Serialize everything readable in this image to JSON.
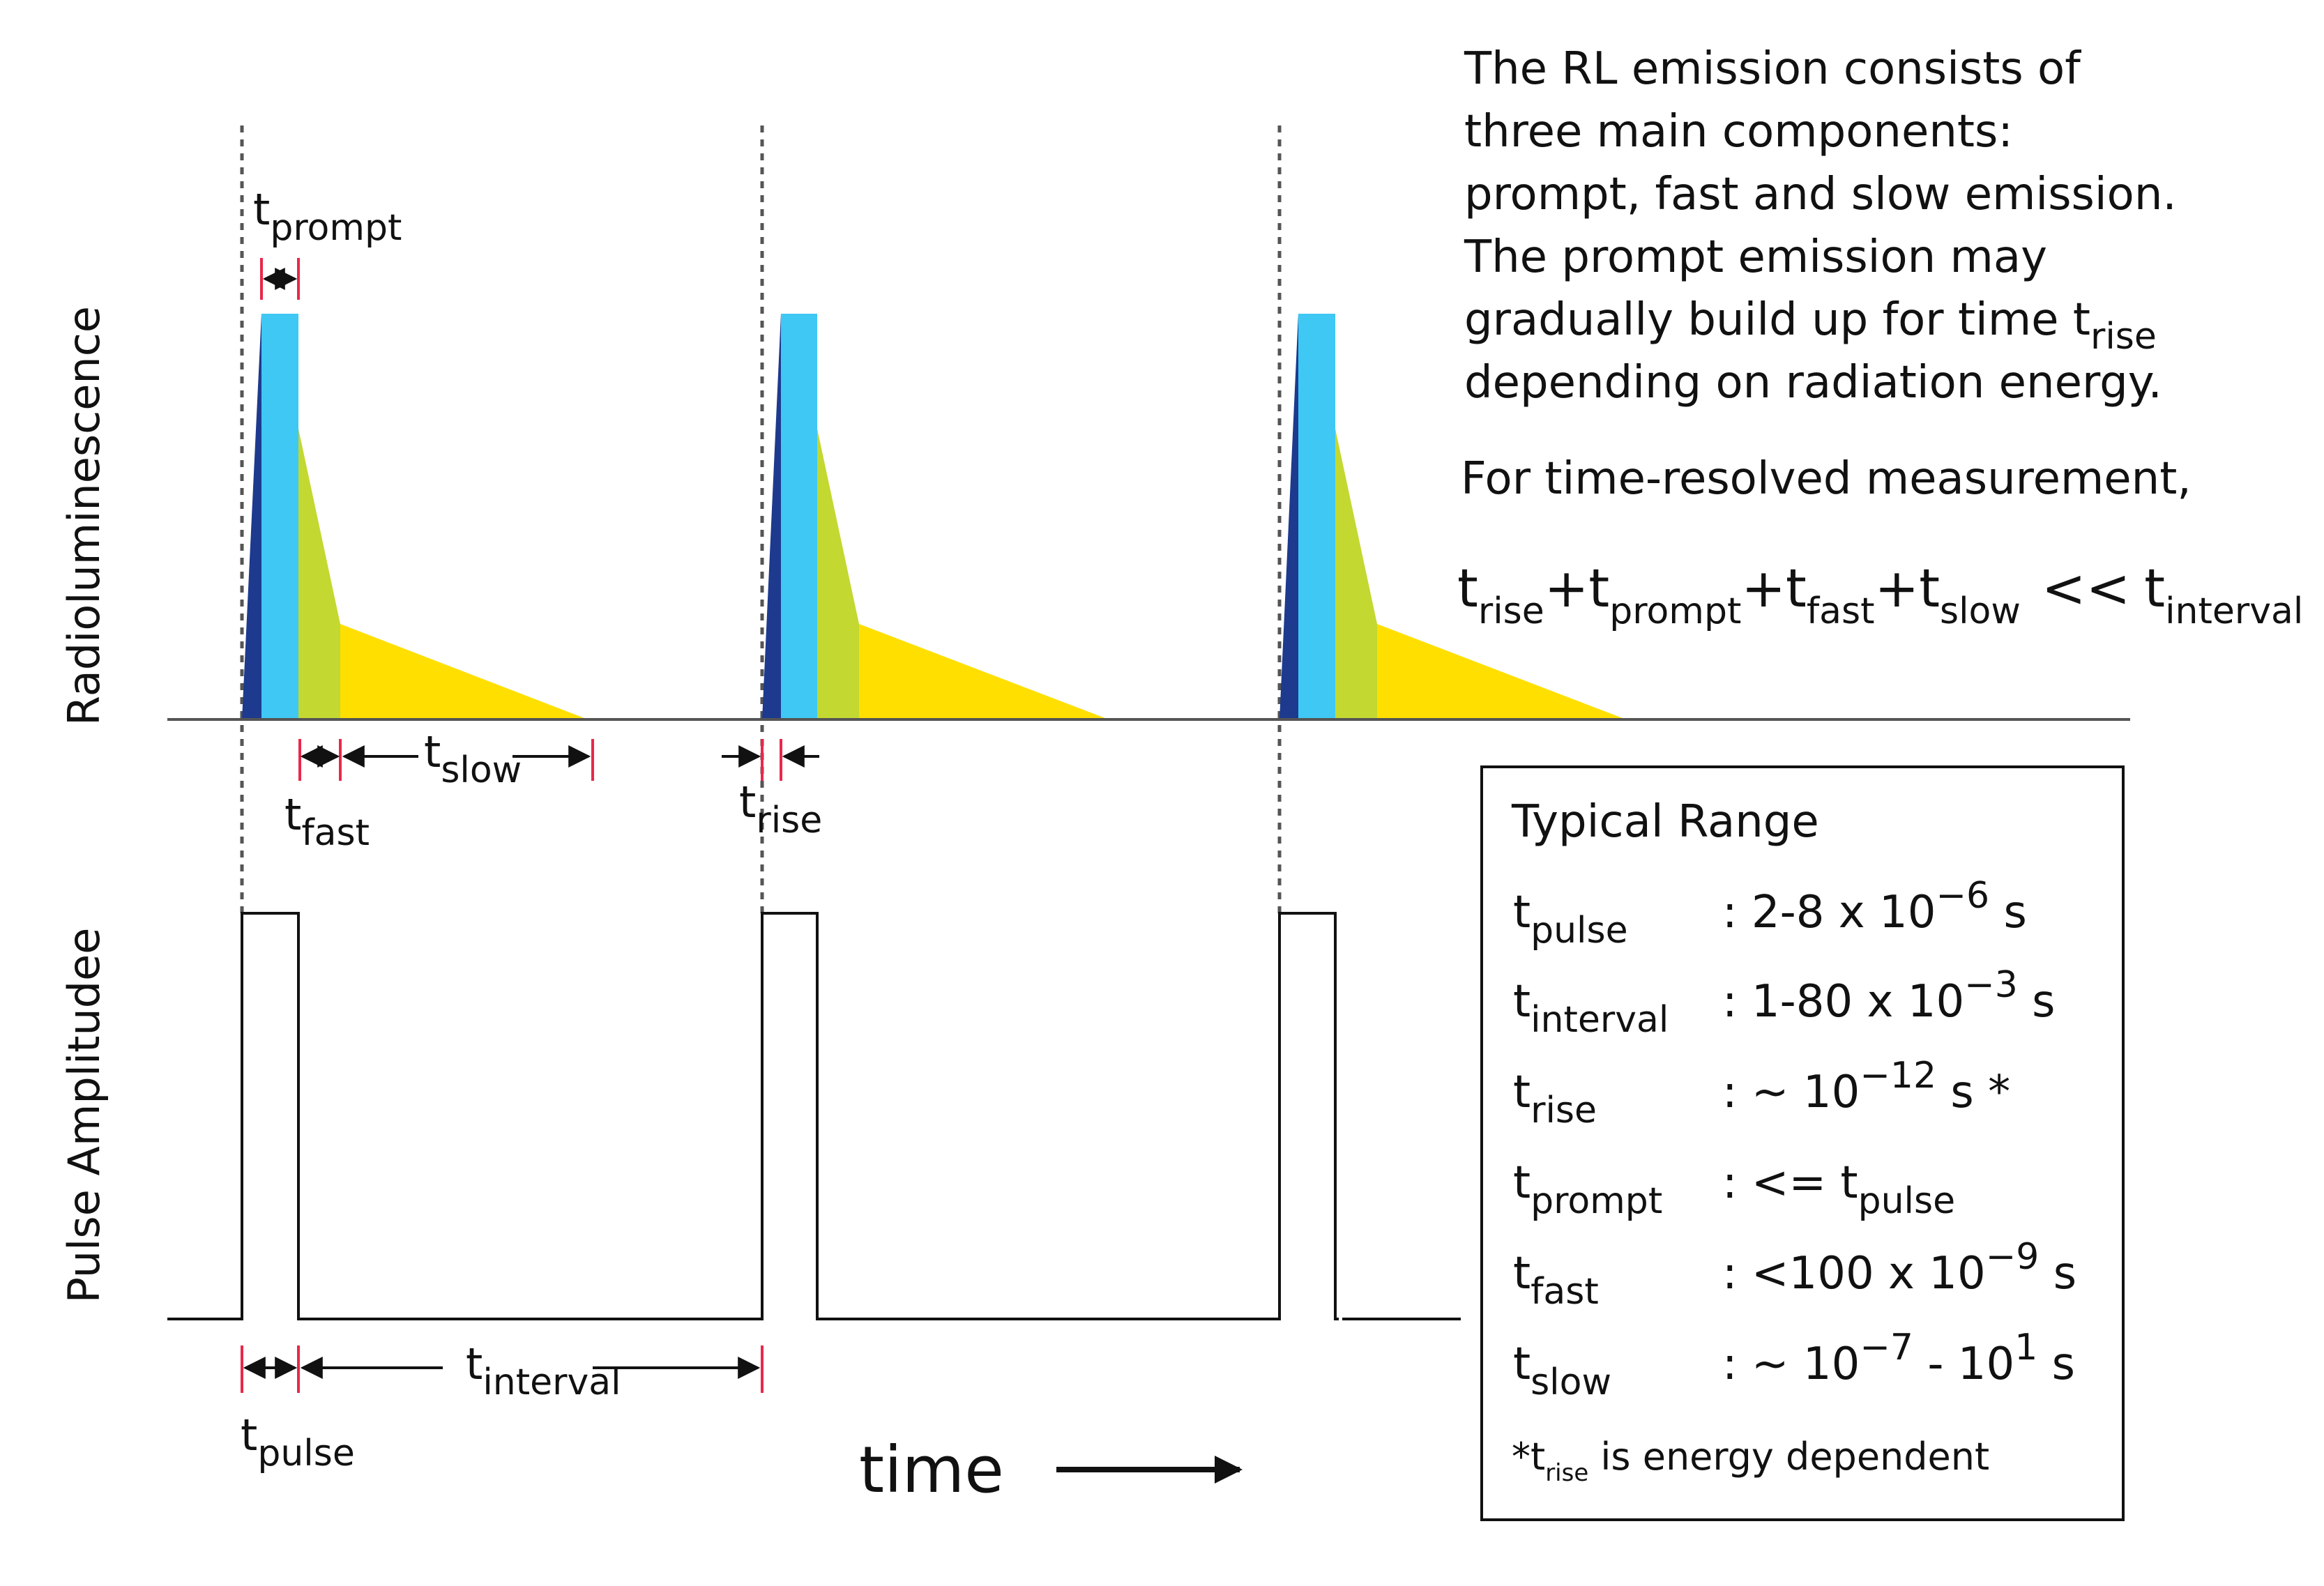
{
  "axes": {
    "y_top_label": "Radioluminescence",
    "y_bottom_label": "Pulse Amplitudee",
    "x_label": "time"
  },
  "pulse_labels": {
    "prompt": {
      "main": "t",
      "sub": "prompt"
    },
    "fast": {
      "main": "t",
      "sub": "fast"
    },
    "slow": {
      "main": "t",
      "sub": "slow"
    },
    "rise": {
      "main": "t",
      "sub": "rise"
    },
    "pulse": {
      "main": "t",
      "sub": "pulse"
    },
    "interval": {
      "main": "t",
      "sub": "interval"
    }
  },
  "description": {
    "lines": [
      "The  RL emission consists of",
      "three main components:",
      "prompt, fast and slow emission.",
      "The prompt emission may",
      "gradually build up for time t",
      "depending on radiation energy."
    ],
    "line5_sub": "rise",
    "measurement_line": "For time-resolved measurement,",
    "formula": {
      "t": "t",
      "plus": "+",
      "rise": "rise",
      "prompt": "prompt",
      "fast": "fast",
      "slow": "slow",
      "ll": "<<",
      "interval": "interval"
    }
  },
  "typical_range": {
    "title": "Typical Range",
    "rows": [
      {
        "sym": "t",
        "sub": "pulse",
        "val": ": 2-8 x 10",
        "exp": "−6",
        "unit": " s",
        "tail_sub": ""
      },
      {
        "sym": "t",
        "sub": "interval",
        "val": ": 1-80 x 10",
        "exp": "−3",
        "unit": " s",
        "tail_sub": ""
      },
      {
        "sym": "t",
        "sub": "rise",
        "val": ": ~ 10",
        "exp": "−12",
        "unit": " s *",
        "tail_sub": ""
      },
      {
        "sym": "t",
        "sub": "prompt",
        "val": ": <= t",
        "exp": "",
        "unit": "",
        "tail_sub": "pulse"
      },
      {
        "sym": "t",
        "sub": "fast",
        "val": ": <100 x 10",
        "exp": "−9",
        "unit": " s",
        "tail_sub": ""
      },
      {
        "sym": "t",
        "sub": "slow",
        "val": ": ~ 10",
        "exp": "−7",
        "unit": " - 10",
        "tail_sub": "",
        "exp2": "1",
        "unit2": " s"
      }
    ],
    "footnote": {
      "pre": "*t",
      "sub": "rise",
      "post": " is energy dependent"
    }
  },
  "colors": {
    "rise": "#1d3a8e",
    "prompt": "#3fc8f4",
    "fast": "#c3d831",
    "slow": "#ffdf00",
    "tick": "#e8284a",
    "line": "#555555"
  }
}
